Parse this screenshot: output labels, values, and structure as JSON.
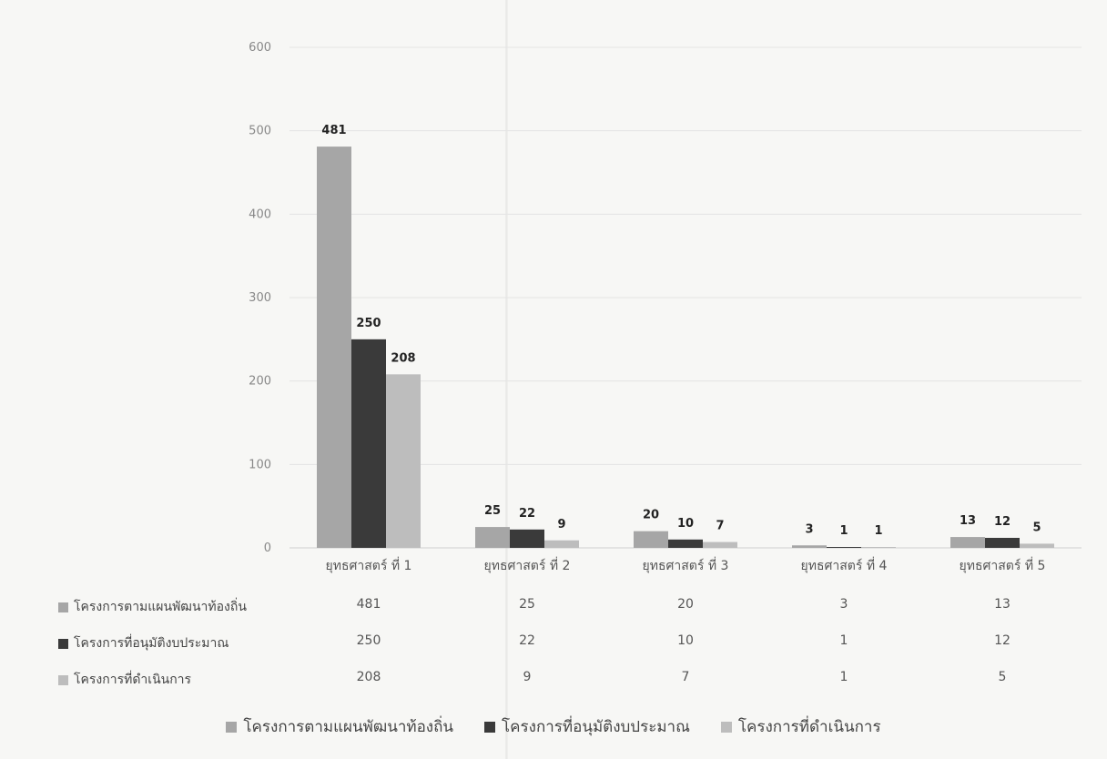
{
  "chart_data": {
    "type": "bar",
    "categories": [
      "ยุทธศาสตร์ ที่ 1",
      "ยุทธศาสตร์ ที่ 2",
      "ยุทธศาสตร์ ที่ 3",
      "ยุทธศาสตร์ ที่ 4",
      "ยุทธศาสตร์ ที่ 5"
    ],
    "series": [
      {
        "name": "โครงการตามแผนพัฒนาท้องถิ่น",
        "values": [
          481,
          25,
          20,
          3,
          13
        ],
        "color": "#a6a6a6"
      },
      {
        "name": "โครงการที่อนุมัติงบประมาณ",
        "values": [
          250,
          22,
          10,
          1,
          12
        ],
        "color": "#3a3a3a"
      },
      {
        "name": "โครงการที่ดำเนินการ",
        "values": [
          208,
          9,
          7,
          1,
          5
        ],
        "color": "#bdbdbd"
      }
    ],
    "yticks": [
      "0",
      "100",
      "200",
      "300",
      "400",
      "500",
      "600"
    ],
    "ylim": [
      0,
      600
    ],
    "grid": true,
    "data_labels": true,
    "legend_position": "bottom",
    "data_table": true
  }
}
